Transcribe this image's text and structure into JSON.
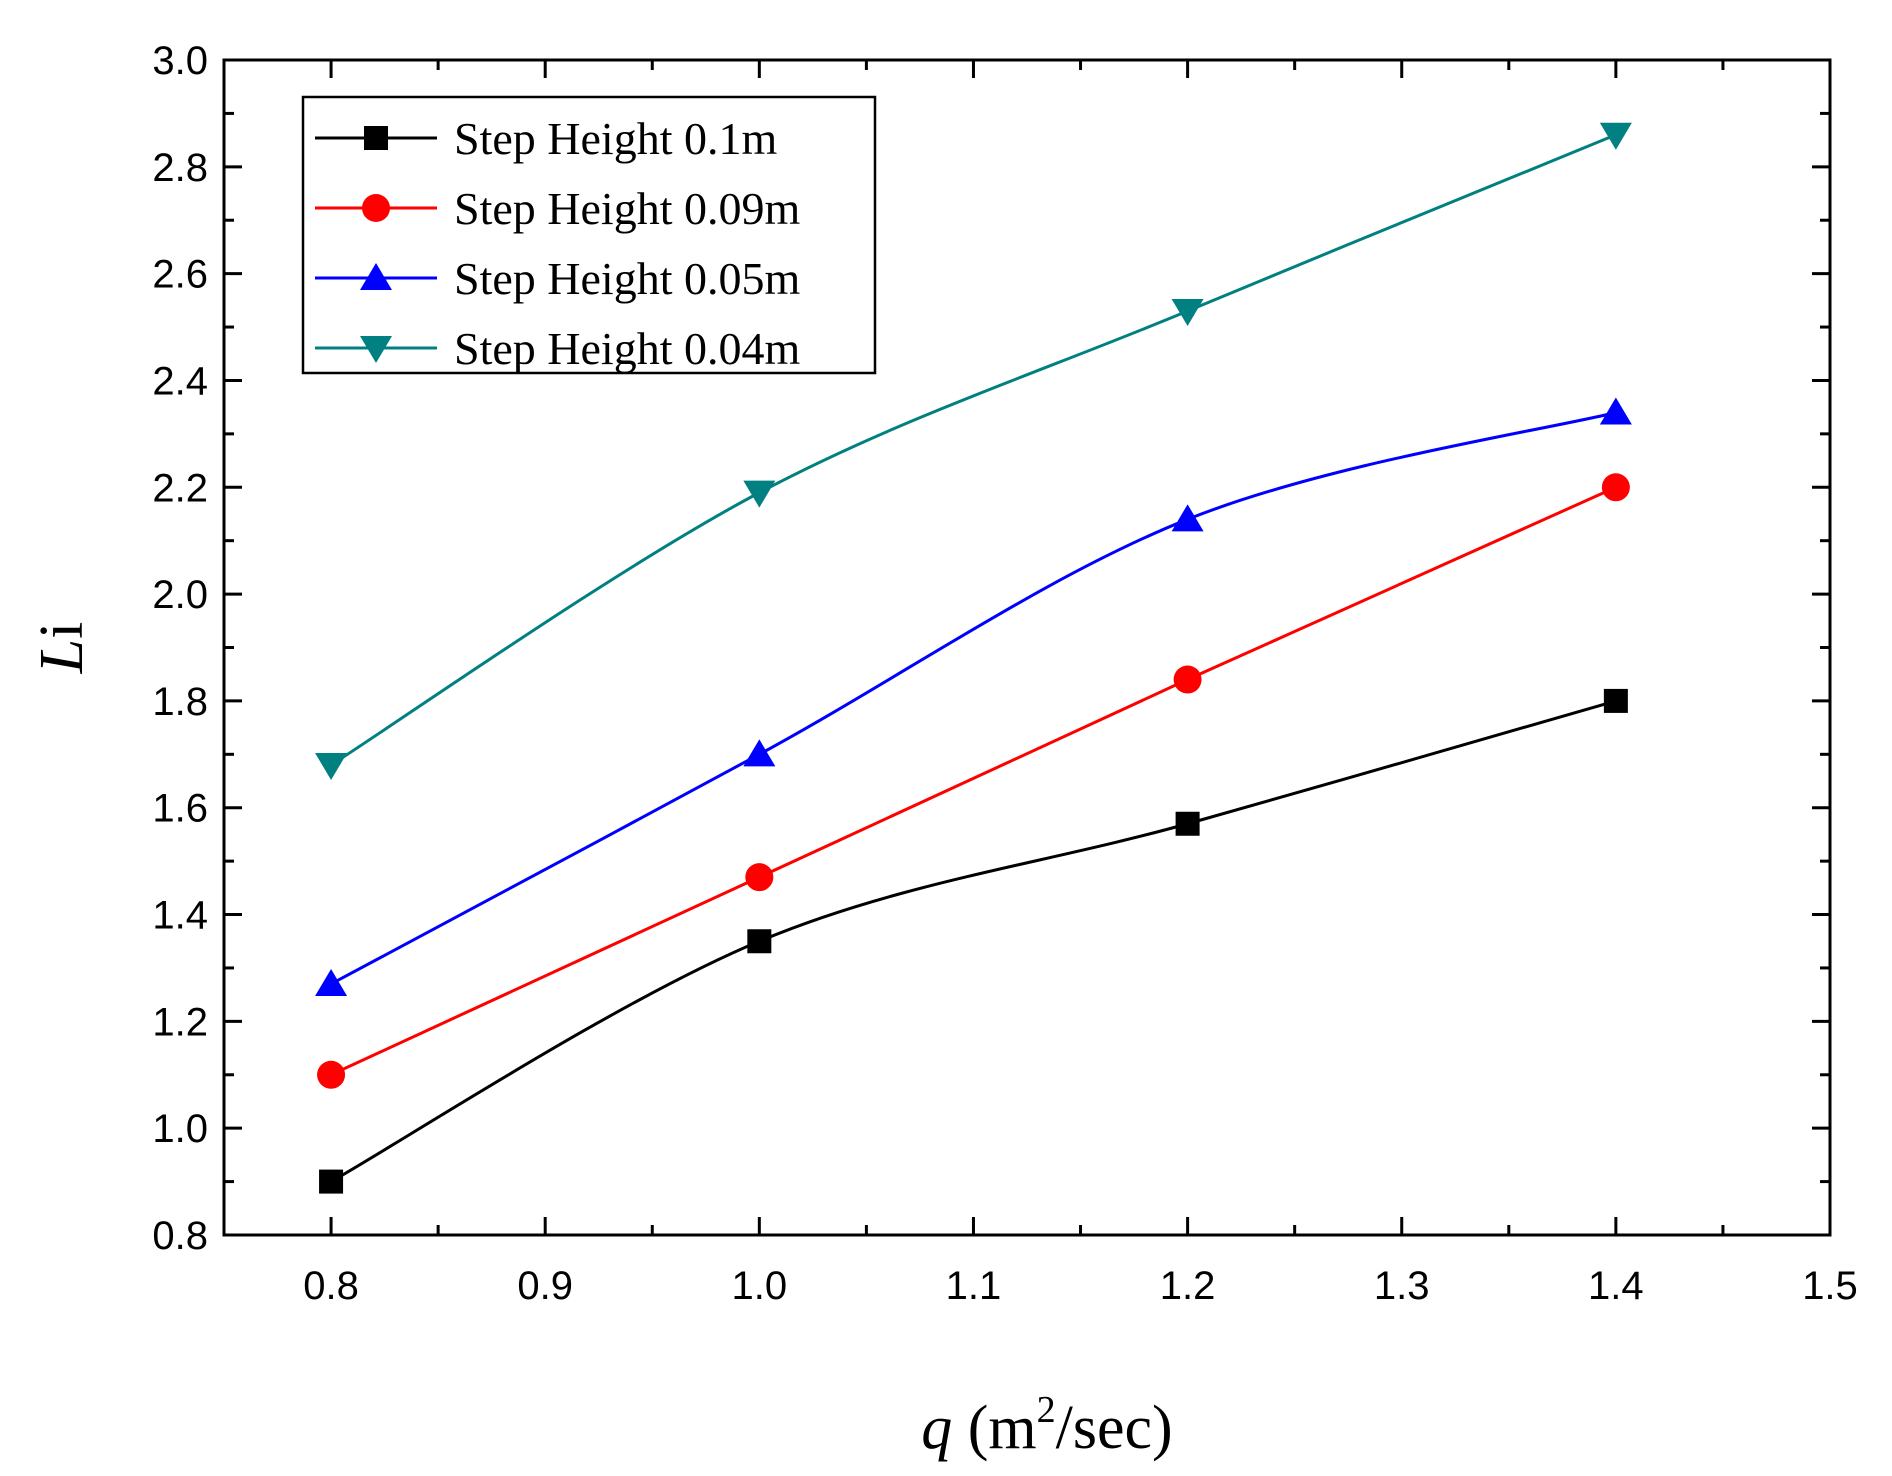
{
  "chart_data": {
    "type": "line",
    "xlabel": {
      "var": "q",
      "open": " (m",
      "sup": "2",
      "close": "/sec)"
    },
    "ylabel": {
      "var": "L",
      "sub": "i"
    },
    "xlim": [
      0.75,
      1.5
    ],
    "ylim": [
      0.8,
      3.0
    ],
    "xticks": [
      "0.8",
      "0.9",
      "1.0",
      "1.1",
      "1.2",
      "1.3",
      "1.4",
      "1.5"
    ],
    "yticks": [
      "0.8",
      "1.0",
      "1.2",
      "1.4",
      "1.6",
      "1.8",
      "2.0",
      "2.2",
      "2.4",
      "2.6",
      "2.8",
      "3.0"
    ],
    "grid": false,
    "legend_position": "top-left",
    "x": [
      0.8,
      1.0,
      1.2,
      1.4
    ],
    "series": [
      {
        "name": "Step Height 0.1m",
        "values": [
          0.9,
          1.35,
          1.57,
          1.8
        ],
        "color": "#000000",
        "marker": "square"
      },
      {
        "name": "Step Height 0.09m",
        "values": [
          1.1,
          1.47,
          1.84,
          2.2
        ],
        "color": "#ff0000",
        "marker": "circle"
      },
      {
        "name": "Step Height 0.05m",
        "values": [
          1.27,
          1.7,
          2.14,
          2.34
        ],
        "color": "#0000ff",
        "marker": "triangle-up"
      },
      {
        "name": "Step Height 0.04m",
        "values": [
          1.68,
          2.19,
          2.53,
          2.86
        ],
        "color": "#008080",
        "marker": "triangle-down"
      }
    ]
  }
}
